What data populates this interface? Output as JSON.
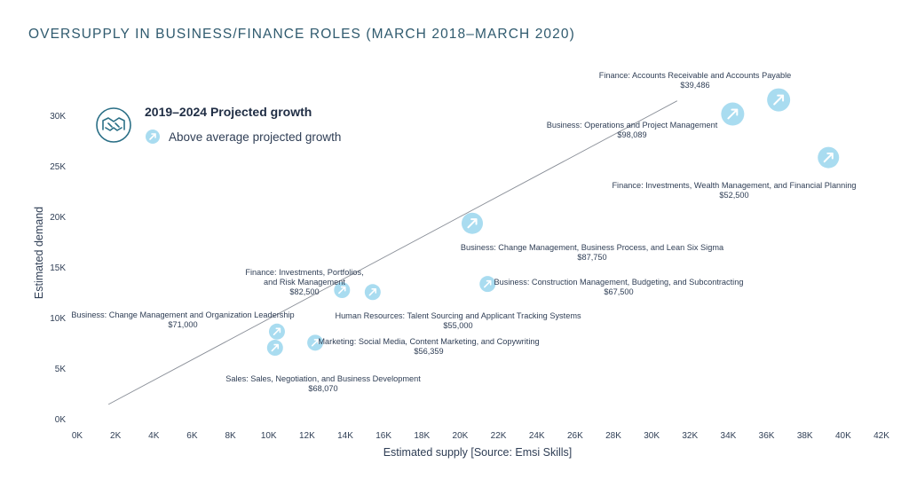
{
  "title": "OVERSUPPLY IN BUSINESS/FINANCE ROLES (MARCH 2018–MARCH 2020)",
  "legend": {
    "title": "2019–2024 Projected growth",
    "item": "Above average projected growth",
    "emblem_icon": "handshake-icon",
    "marker_icon": "arrow-up-right-circle-icon"
  },
  "colors": {
    "marker": "#a9dcf0",
    "marker_arrow": "#ffffff",
    "trend": "#8a8f98",
    "emblem": "#2a6f86",
    "text": "#2f3e55"
  },
  "chart_data": {
    "type": "scatter",
    "xlabel": "Estimated supply [Source: Emsi Skills]",
    "ylabel": "Estimated demand",
    "xlim": [
      0,
      42000
    ],
    "ylim": [
      0,
      32000
    ],
    "x_ticks": [
      "0K",
      "2K",
      "4K",
      "6K",
      "8K",
      "10K",
      "12K",
      "14K",
      "16K",
      "18K",
      "20K",
      "22K",
      "24K",
      "26K",
      "28K",
      "30K",
      "32K",
      "34K",
      "36K",
      "38K",
      "40K",
      "42K"
    ],
    "y_ticks": [
      "0K",
      "5K",
      "10K",
      "15K",
      "20K",
      "25K",
      "30K"
    ],
    "trendline": {
      "x": [
        2000,
        31700
      ],
      "y": [
        1500,
        31500
      ]
    },
    "points": [
      {
        "x": 37000,
        "y": 31600,
        "size": "large",
        "label": "Finance: Accounts Receivable and Accounts Payable",
        "salary": "$39,486"
      },
      {
        "x": 34600,
        "y": 30200,
        "size": "large",
        "label": "Business: Operations and Project Management",
        "salary": "$98,089"
      },
      {
        "x": 39600,
        "y": 25900,
        "size": "medium",
        "label": "Finance: Investments, Wealth Management, and Financial Planning",
        "salary": "$52,500"
      },
      {
        "x": 21000,
        "y": 19400,
        "size": "medium",
        "label": "Business: Change Management, Business Process, and Lean Six Sigma",
        "salary": "$87,750"
      },
      {
        "x": 21800,
        "y": 13400,
        "size": "small",
        "label": "Business: Construction Management, Budgeting, and Subcontracting",
        "salary": "$67,500"
      },
      {
        "x": 14200,
        "y": 12800,
        "size": "small",
        "label": "Finance: Investments, Portfolios, and Risk Management",
        "salary": "$82,500"
      },
      {
        "x": 15800,
        "y": 12600,
        "size": "small",
        "label": "Human Resources: Talent Sourcing and Applicant Tracking Systems",
        "salary": "$55,000"
      },
      {
        "x": 10800,
        "y": 8700,
        "size": "small",
        "label": "Business: Change Management and Organization Leadership",
        "salary": "$71,000"
      },
      {
        "x": 10700,
        "y": 7100,
        "size": "small",
        "label": "Sales: Sales, Negotiation, and Business Development",
        "salary": "$68,070"
      },
      {
        "x": 12800,
        "y": 7600,
        "size": "small",
        "label": "Marketing: Social Media, Content Marketing, and Copywriting",
        "salary": "$56,359"
      }
    ]
  }
}
